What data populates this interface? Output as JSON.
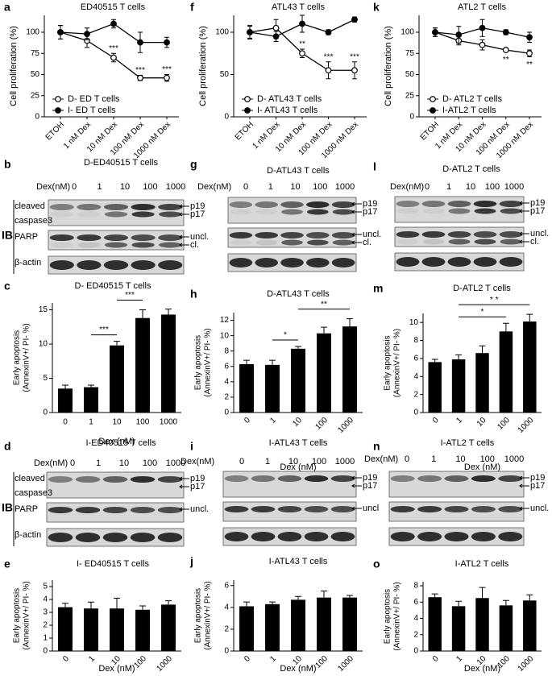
{
  "chart_data": [
    {
      "type": "line",
      "label": "a",
      "title": "ED40515 T cells",
      "ylabel": "Cell proliferation (%)",
      "categories": [
        "ETOH",
        "1 nM Dex",
        "10 nM Dex",
        "100 nM Dex",
        "1000 nM Dex"
      ],
      "series": [
        {
          "name": "D- ED T cells",
          "color": "#000",
          "marker_fill": "#fff",
          "values": [
            100,
            90,
            70,
            46,
            46
          ],
          "errors": [
            8,
            8,
            5,
            3,
            4
          ]
        },
        {
          "name": "I- ED T cells",
          "color": "#000",
          "marker_fill": "#000",
          "values": [
            100,
            98,
            110,
            88,
            88
          ],
          "errors": [
            8,
            7,
            5,
            12,
            6
          ]
        }
      ],
      "ylim": [
        0,
        120
      ],
      "yticks": [
        0,
        25,
        50,
        75,
        100
      ],
      "annotations": [
        {
          "text": "***",
          "at": "10 nM Dex"
        },
        {
          "text": "***",
          "at": "100 nM Dex"
        },
        {
          "text": "***",
          "at": "1000 nM Dex"
        }
      ]
    },
    {
      "type": "line",
      "label": "f",
      "title": "ATL43 T cells",
      "ylabel": "Cell proliferation (%)",
      "categories": [
        "ETOH",
        "1 nM Dex",
        "10 nM Dex",
        "100 nM Dex",
        "1000 nM Dex"
      ],
      "series": [
        {
          "name": "D- ATL43 T cells",
          "color": "#000",
          "marker_fill": "#fff",
          "values": [
            100,
            105,
            75,
            55,
            55
          ],
          "errors": [
            8,
            10,
            5,
            10,
            10
          ]
        },
        {
          "name": "I- ATL43 T cells",
          "color": "#000",
          "marker_fill": "#000",
          "values": [
            100,
            95,
            110,
            100,
            115
          ],
          "errors": [
            7,
            6,
            10,
            3,
            3
          ]
        }
      ],
      "ylim": [
        0,
        120
      ],
      "yticks": [
        0,
        50,
        100
      ],
      "annotations": [
        {
          "text": "**",
          "at": "10 nM Dex"
        },
        {
          "text": "***",
          "at": "100 nM Dex"
        },
        {
          "text": "***",
          "at": "1000 nM Dex"
        }
      ]
    },
    {
      "type": "line",
      "label": "k",
      "title": "ATL2 T cells",
      "ylabel": "Cell proliferation (%)",
      "categories": [
        "ETOH",
        "1 nM Dex",
        "10 nM Dex",
        "100 nM Dex",
        "1000 nM Dex"
      ],
      "series": [
        {
          "name": "D- ATL2 T cells",
          "color": "#000",
          "marker_fill": "#fff",
          "values": [
            100,
            90,
            85,
            79,
            75
          ],
          "errors": [
            5,
            5,
            6,
            2,
            4
          ]
        },
        {
          "name": "I-ATL2 T cells",
          "color": "#000",
          "marker_fill": "#000",
          "values": [
            100,
            97,
            105,
            100,
            94
          ],
          "errors": [
            5,
            10,
            10,
            3,
            6
          ]
        }
      ],
      "ylim": [
        0,
        120
      ],
      "yticks": [
        0,
        25,
        50,
        75,
        100
      ],
      "annotation_side": "below",
      "annotations": [
        {
          "text": "**",
          "at": "100 nM Dex"
        },
        {
          "text": "**",
          "at": "1000 nM Dex"
        }
      ]
    },
    {
      "type": "bar",
      "label": "c",
      "title": "D- ED40515 T cells",
      "ylabel": [
        "Early apoptosis",
        "(AnnexinV+/ PI- %)"
      ],
      "xlabel": "Dex (nM)",
      "categories": [
        "0",
        "1",
        "10",
        "100",
        "1000"
      ],
      "values": [
        3.5,
        3.7,
        9.8,
        13.8,
        14.3
      ],
      "errors": [
        0.5,
        0.3,
        0.6,
        1.2,
        0.8
      ],
      "color": "#000",
      "ylim": [
        0,
        16
      ],
      "yticks": [
        0,
        5,
        10,
        15
      ],
      "annotations": [
        {
          "text": "***",
          "from": "1",
          "to": "10"
        },
        {
          "text": "***",
          "from": "10",
          "to": "100"
        }
      ]
    },
    {
      "type": "bar",
      "label": "h",
      "title": "D-ATL43 T cells",
      "ylabel": [
        "Early apoptosis",
        "(AnnexinV+/ PI- %)"
      ],
      "xlabel": "Dex (nM)",
      "categories": [
        "0",
        "1",
        "10",
        "100",
        "1000"
      ],
      "values": [
        6.3,
        6.2,
        8.3,
        10.3,
        11.2
      ],
      "errors": [
        0.5,
        0.6,
        0.3,
        0.8,
        1.0
      ],
      "color": "#000",
      "ylim": [
        0,
        13
      ],
      "yticks": [
        0,
        2,
        4,
        6,
        8,
        10,
        12
      ],
      "annotations": [
        {
          "text": "*",
          "from": "1",
          "to": "10"
        },
        {
          "text": "**",
          "from": "10",
          "to": "1000"
        }
      ]
    },
    {
      "type": "bar",
      "label": "m",
      "title": "D-ATL2 T cells",
      "ylabel": [
        "Early apoptosis",
        "(AnnexinV+/ PI- %)"
      ],
      "xlabel": "Dex (nM)",
      "categories": [
        "0",
        "1",
        "10",
        "100",
        "1000"
      ],
      "values": [
        5.6,
        5.9,
        6.6,
        9.0,
        10.1
      ],
      "errors": [
        0.3,
        0.5,
        0.8,
        0.9,
        0.8
      ],
      "color": "#000",
      "ylim": [
        0,
        11
      ],
      "yticks": [
        0,
        2,
        4,
        6,
        8,
        10
      ],
      "annotations": [
        {
          "text": "*",
          "from": "1",
          "to": "100"
        },
        {
          "text": "* *",
          "from": "1",
          "to": "1000"
        }
      ]
    },
    {
      "type": "bar",
      "label": "e",
      "title": "I- ED40515 T cells",
      "ylabel": [
        "Early apoptosis",
        "(AnnexinV+/ PI- %)"
      ],
      "xlabel": "Dex (nM)",
      "categories": [
        "0",
        "1",
        "10",
        "100",
        "1000"
      ],
      "values": [
        3.4,
        3.3,
        3.3,
        3.2,
        3.6
      ],
      "errors": [
        0.3,
        0.5,
        0.8,
        0.3,
        0.3
      ],
      "color": "#000",
      "ylim": [
        0,
        5.5
      ],
      "yticks": [
        0,
        1,
        2,
        3,
        4,
        5
      ]
    },
    {
      "type": "bar",
      "label": "j",
      "title": "I-ATL43 T cells",
      "ylabel": [
        "Early apoptosis",
        "(AnnexinV+/ PI- %)"
      ],
      "xlabel": "Dex (nM)",
      "categories": [
        "0",
        "1",
        "10",
        "100",
        "1000"
      ],
      "values": [
        4.1,
        4.3,
        4.7,
        4.9,
        4.9
      ],
      "errors": [
        0.4,
        0.2,
        0.3,
        0.6,
        0.2
      ],
      "color": "#000",
      "ylim": [
        0,
        6.5
      ],
      "yticks": [
        0,
        2,
        4,
        6
      ]
    },
    {
      "type": "bar",
      "label": "o",
      "title": "I-ATL2 T cells",
      "ylabel": [
        "Early apoptosis",
        "(AnnexinV+/ PI- %)"
      ],
      "xlabel": "Dex (nM)",
      "categories": [
        "0",
        "1",
        "10",
        "100",
        "1000"
      ],
      "values": [
        6.6,
        5.5,
        6.5,
        5.6,
        6.2
      ],
      "errors": [
        0.4,
        0.6,
        1.3,
        0.6,
        0.7
      ],
      "color": "#000",
      "ylim": [
        0,
        8.5
      ],
      "yticks": [
        0,
        2,
        4,
        6,
        8
      ]
    }
  ],
  "blots": [
    {
      "label": "b",
      "title": "D-ED40515 T cells",
      "dex": "Dex(nM)",
      "lanes": [
        "0",
        "1",
        "10",
        "100",
        "1000"
      ],
      "ib": "IB",
      "rows": [
        {
          "labels": [
            "cleaved",
            "caspase3"
          ],
          "markers": [
            "p19",
            "p17"
          ]
        },
        {
          "labels": [
            "PARP"
          ],
          "markers": [
            "uncl.",
            "cl."
          ]
        },
        {
          "labels": [
            "β-actin"
          ]
        }
      ]
    },
    {
      "label": "g",
      "title": "D-ATL43 T cells",
      "dex": "Dex(nM)",
      "lanes": [
        "0",
        "1",
        "10",
        "100",
        "1000"
      ],
      "rows": [
        {
          "markers": [
            "p19",
            "p17"
          ]
        },
        {
          "markers": [
            "uncl.",
            "cl."
          ]
        },
        {}
      ]
    },
    {
      "label": "l",
      "title": "D-ATL2 T cells",
      "dex": "Dex(nM)",
      "lanes": [
        "0",
        "1",
        "10",
        "100",
        "1000"
      ],
      "rows": [
        {
          "markers": [
            "p19",
            "p17"
          ]
        },
        {
          "markers": [
            "uncl.",
            "cl."
          ]
        },
        {}
      ]
    },
    {
      "label": "d",
      "title": "I-ED40515 T cells",
      "dex": "Dex(nM)",
      "lanes": [
        "0",
        "1",
        "10",
        "100",
        "1000"
      ],
      "ib": "IB",
      "rows": [
        {
          "labels": [
            "cleaved",
            "caspase3"
          ],
          "markers": [
            "p19",
            "p17"
          ]
        },
        {
          "labels": [
            "PARP"
          ],
          "markers": [
            "uncl."
          ]
        },
        {
          "labels": [
            "β-actin"
          ]
        }
      ]
    },
    {
      "label": "i",
      "title": "I-ATL43 T cells",
      "dex": "Dex(nM)",
      "lanes": [
        "0",
        "1",
        "10",
        "100",
        "1000"
      ],
      "rows": [
        {
          "markers": [
            "p19",
            "p17"
          ]
        },
        {
          "markers": [
            "uncl"
          ]
        },
        {}
      ]
    },
    {
      "label": "n",
      "title": "I-ATL2 T cells",
      "dex": "Dex(nM)",
      "lanes": [
        "0",
        "1",
        "10",
        "100",
        "1000"
      ],
      "rows": [
        {
          "markers": [
            "p19",
            "p17"
          ]
        },
        {
          "markers": [
            "uncl."
          ]
        },
        {}
      ]
    }
  ]
}
